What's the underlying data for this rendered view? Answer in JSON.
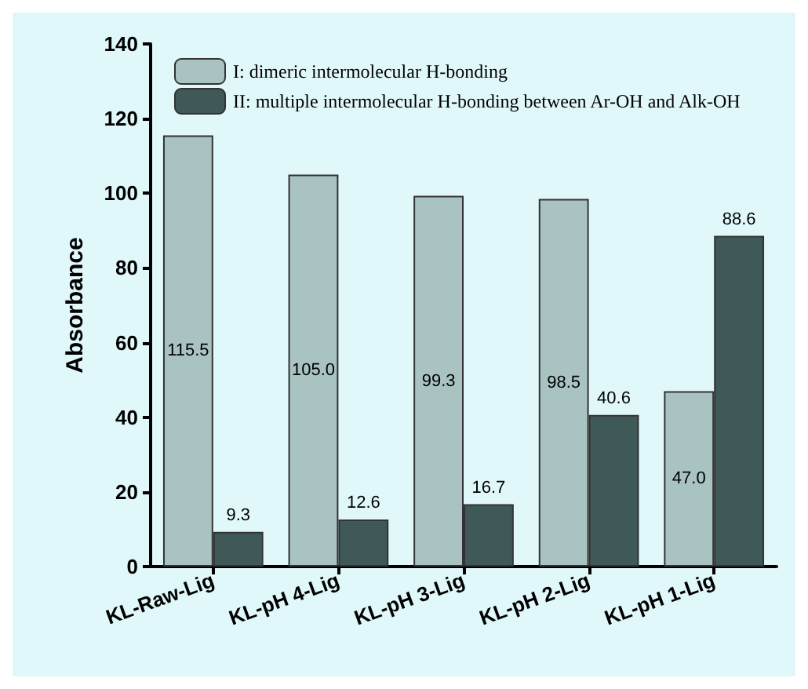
{
  "chart_data": {
    "type": "bar",
    "ylabel": "Absorbance",
    "categories": [
      "KL-Raw-Lig",
      "KL-pH 4-Lig",
      "KL-pH 3-Lig",
      "KL-pH 2-Lig",
      "KL-pH 1-Lig"
    ],
    "series": [
      {
        "name": "I: dimeric intermolecular H-bonding",
        "color": "#a9c3c3",
        "values": [
          115.5,
          105.0,
          99.3,
          98.5,
          47.0
        ],
        "value_labels": [
          "115.5",
          "105.0",
          "99.3",
          "98.5",
          "47.0"
        ]
      },
      {
        "name": "II: multiple intermolecular H-bonding between Ar-OH and Alk-OH",
        "color": "#3f5858",
        "values": [
          9.3,
          12.6,
          16.7,
          40.6,
          88.6
        ],
        "value_labels": [
          "9.3",
          "12.6",
          "16.7",
          "40.6",
          "88.6"
        ]
      }
    ],
    "ylim": [
      0,
      140
    ],
    "yticks": [
      0,
      20,
      40,
      60,
      80,
      100,
      120,
      140
    ],
    "grid": false,
    "legend": "top left"
  }
}
